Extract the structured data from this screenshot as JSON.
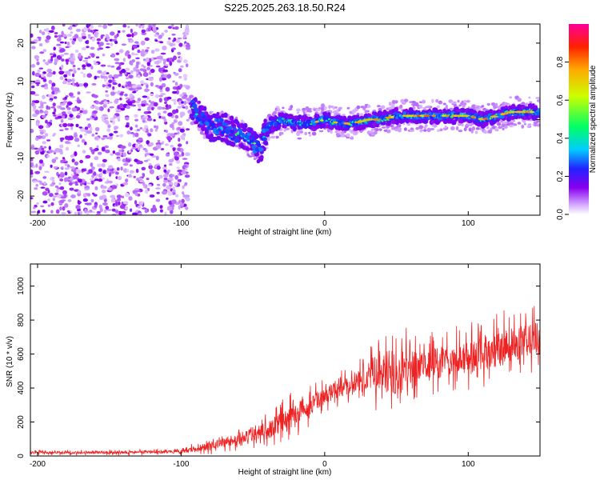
{
  "title": "S225.2025.263.18.50.R24",
  "chart_data": [
    {
      "type": "heatmap",
      "name": "spectrogram",
      "xlabel": "Height of straight line (km)",
      "ylabel": "Frequency (Hz)",
      "xlim": [
        -205,
        150
      ],
      "ylim": [
        -25,
        25
      ],
      "xticks": [
        -200,
        -100,
        0,
        100
      ],
      "yticks": [
        -20,
        -10,
        0,
        10,
        20
      ],
      "colorbar": {
        "label": "Normalized spectral amplitude",
        "range": [
          0,
          1
        ],
        "ticks": [
          0.0,
          0.2,
          0.4,
          0.6,
          0.8
        ],
        "tick_labels": [
          "0.0",
          "0.2",
          "0.4",
          "0.6",
          "0.8"
        ],
        "colors": [
          "#ffffff",
          "#cc99ff",
          "#8800ee",
          "#2222ff",
          "#00ccff",
          "#00ff66",
          "#ccff00",
          "#ffaa00",
          "#ff2200",
          "#ff0099"
        ]
      },
      "noise_region_x": [
        -205,
        -95
      ],
      "signal_track": {
        "x": [
          -92,
          -80,
          -70,
          -60,
          -50,
          -45,
          -40,
          -35,
          -30,
          -20,
          -10,
          0,
          10,
          20,
          30,
          40,
          50,
          60,
          70,
          80,
          90,
          100,
          110,
          120,
          130,
          140,
          150
        ],
        "freq": [
          3,
          -2,
          -2,
          -4,
          -6,
          -8,
          -2,
          -1,
          0,
          -1,
          -1,
          0,
          -1,
          -1,
          0,
          0,
          1,
          1,
          1,
          1,
          1,
          1,
          0,
          1,
          2,
          2,
          2
        ],
        "amplitude": [
          0.4,
          0.35,
          0.35,
          0.35,
          0.35,
          0.3,
          0.4,
          0.45,
          0.5,
          0.55,
          0.7,
          0.6,
          0.65,
          0.55,
          0.6,
          0.65,
          0.7,
          0.75,
          0.8,
          0.75,
          0.85,
          0.7,
          0.75,
          0.8,
          0.7,
          0.8,
          0.8
        ]
      }
    },
    {
      "type": "line",
      "name": "snr",
      "xlabel": "Height of straight line (km)",
      "ylabel": "SNR (10 * v/v)",
      "xlim": [
        -205,
        150
      ],
      "ylim": [
        0,
        1130
      ],
      "xticks": [
        -200,
        -100,
        0,
        100
      ],
      "yticks": [
        0,
        200,
        400,
        600,
        800,
        1000
      ],
      "color": "#ee2222",
      "trend": {
        "x": [
          -205,
          -150,
          -100,
          -90,
          -80,
          -60,
          -40,
          -20,
          -10,
          0,
          10,
          20,
          30,
          40,
          50,
          60,
          80,
          100,
          120,
          140,
          150
        ],
        "y": [
          20,
          20,
          25,
          40,
          60,
          100,
          150,
          250,
          300,
          350,
          400,
          420,
          480,
          500,
          480,
          520,
          550,
          580,
          620,
          680,
          700
        ]
      },
      "spread": {
        "x": [
          -205,
          -100,
          -90,
          -60,
          -20,
          0,
          20,
          40,
          50,
          60,
          100,
          120,
          150
        ],
        "y": [
          15,
          20,
          40,
          80,
          150,
          100,
          120,
          250,
          350,
          200,
          200,
          230,
          200
        ]
      }
    }
  ]
}
